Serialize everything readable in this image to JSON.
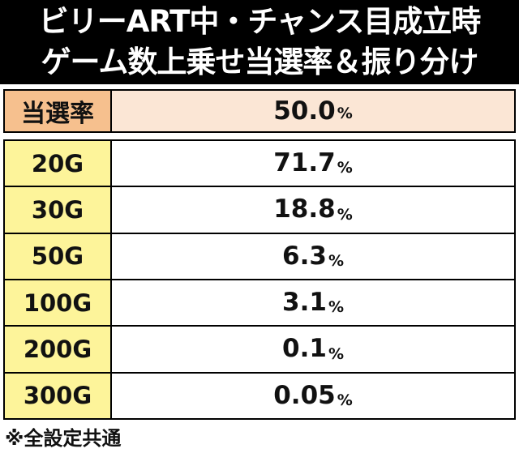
{
  "title": {
    "line1": "ビリーART中・チャンス目成立時",
    "line2": "ゲーム数上乗せ当選率＆振り分け"
  },
  "rate": {
    "label": "当選率",
    "value": "50.0",
    "unit": "%"
  },
  "rows": [
    {
      "games": "20G",
      "value": "71.7",
      "unit": "%"
    },
    {
      "games": "30G",
      "value": "18.8",
      "unit": "%"
    },
    {
      "games": "50G",
      "value": "6.3",
      "unit": "%"
    },
    {
      "games": "100G",
      "value": "3.1",
      "unit": "%"
    },
    {
      "games": "200G",
      "value": "0.1",
      "unit": "%"
    },
    {
      "games": "300G",
      "value": "0.05",
      "unit": "%"
    }
  ],
  "footnote": "※全設定共通",
  "colors": {
    "header_bg": "#000000",
    "rate_label_bg": "#f6c08e",
    "rate_value_bg": "#fbe6d5",
    "games_bg": "#fdf49a"
  }
}
